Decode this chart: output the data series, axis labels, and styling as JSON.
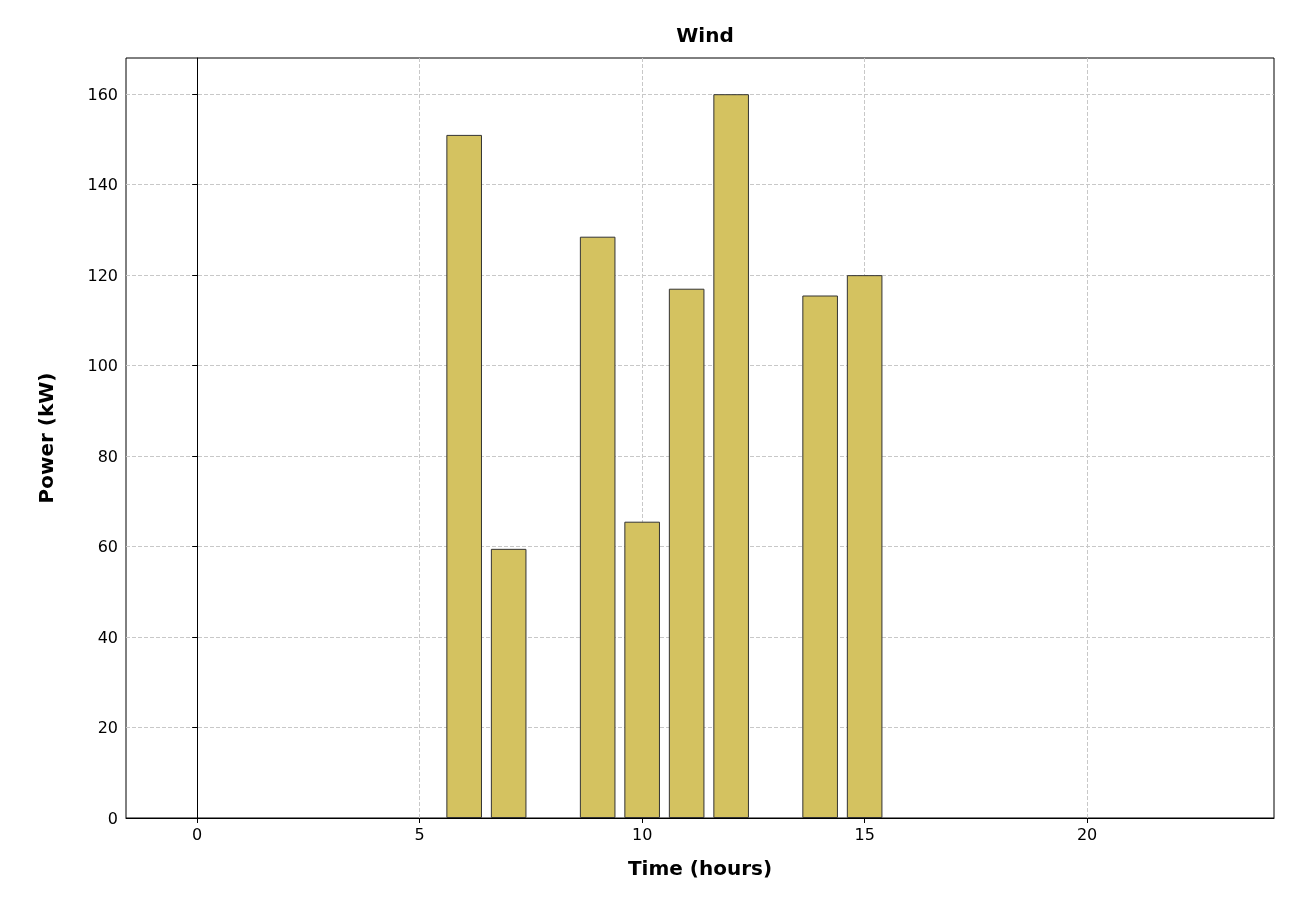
{
  "chart_data": {
    "type": "bar",
    "title": "Wind",
    "xlabel": "Time (hours)",
    "ylabel": "Power (kW)",
    "x": [
      6,
      7,
      9,
      10,
      11,
      12,
      14,
      15
    ],
    "values": [
      151,
      59.5,
      128.5,
      65.5,
      117,
      160,
      115.5,
      120
    ],
    "color": "#d4c260",
    "xlim": [
      -1.6,
      24.2
    ],
    "xticks": [
      0,
      5,
      10,
      15,
      20
    ],
    "ylim": [
      0,
      168
    ],
    "yticks": [
      0,
      20,
      40,
      60,
      80,
      100,
      120,
      140,
      160
    ],
    "grid": true
  }
}
